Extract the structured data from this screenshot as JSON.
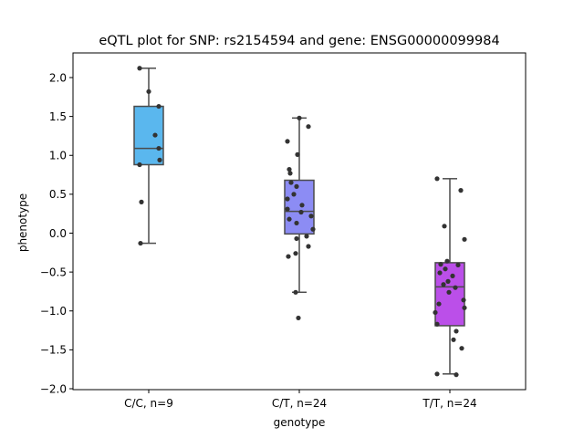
{
  "chart_data": {
    "type": "box",
    "title": "eQTL plot for SNP: rs2154594 and gene: ENSG00000099984",
    "xlabel": "genotype",
    "ylabel": "phenotype",
    "ylim": [
      -2.0,
      2.3
    ],
    "yticks": [
      "2.0",
      "1.5",
      "1.0",
      "0.5",
      "0.0",
      "−0.5",
      "−1.0",
      "−1.5",
      "−2.0"
    ],
    "grid": false,
    "categories": [
      "C/C, n=9",
      "C/T, n=24",
      "T/T, n=24"
    ],
    "colors": [
      "#5ab7ee",
      "#8c8cf4",
      "#bb4fe9"
    ],
    "boxes": [
      {
        "category": "C/C, n=9",
        "whisker_low": -0.13,
        "q1": 0.88,
        "median": 1.09,
        "q3": 1.63,
        "whisker_high": 2.12
      },
      {
        "category": "C/T, n=24",
        "whisker_low": -0.76,
        "q1": -0.01,
        "median": 0.28,
        "q3": 0.68,
        "whisker_high": 1.48
      },
      {
        "category": "T/T, n=24",
        "whisker_low": -1.81,
        "q1": -1.19,
        "median": -0.69,
        "q3": -0.38,
        "whisker_high": 0.7
      }
    ],
    "points": [
      [
        2.12,
        1.82,
        1.63,
        1.26,
        1.09,
        0.94,
        0.88,
        0.4,
        -0.13
      ],
      [
        1.48,
        1.37,
        1.18,
        1.01,
        0.82,
        0.77,
        0.65,
        0.6,
        0.5,
        0.44,
        0.36,
        0.31,
        0.27,
        0.22,
        0.18,
        0.13,
        0.05,
        -0.04,
        -0.07,
        -0.17,
        -0.26,
        -0.3,
        -0.76,
        -1.09
      ],
      [
        0.7,
        0.55,
        0.09,
        -0.08,
        -0.36,
        -0.4,
        -0.41,
        -0.46,
        -0.51,
        -0.55,
        -0.62,
        -0.66,
        -0.7,
        -0.76,
        -0.86,
        -0.91,
        -0.96,
        -1.02,
        -1.17,
        -1.26,
        -1.37,
        -1.48,
        -1.81,
        -1.82
      ]
    ]
  }
}
